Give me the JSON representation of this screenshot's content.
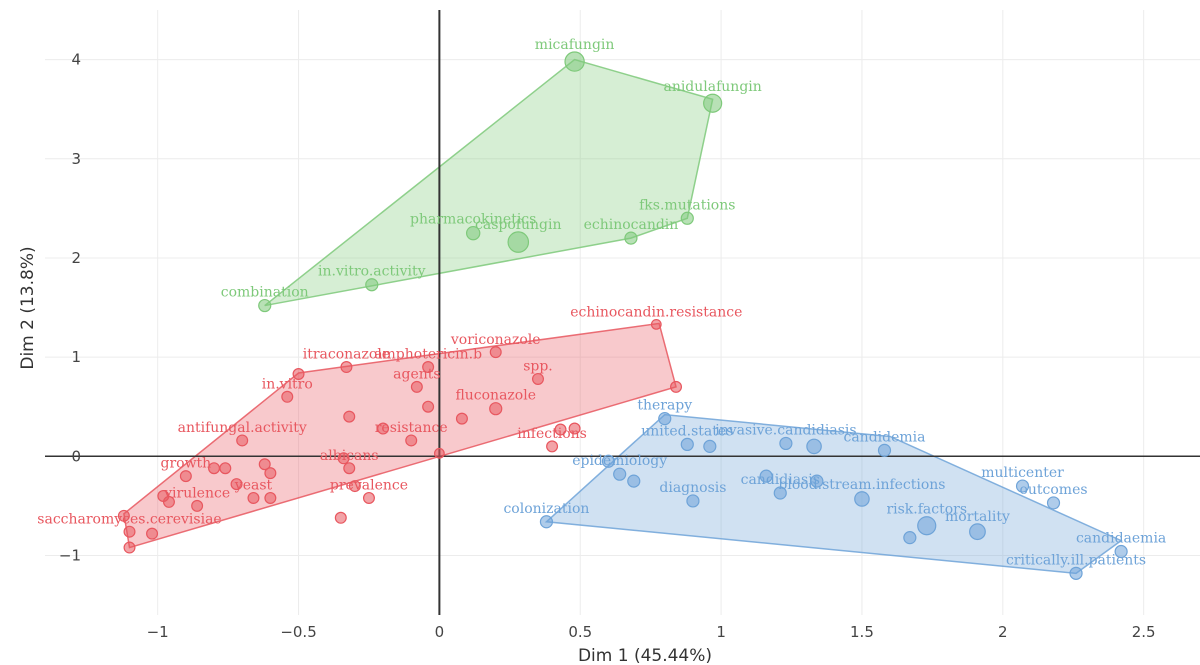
{
  "chart_data": {
    "type": "scatter",
    "title": "",
    "xlabel": "Dim 1 (45.44%)",
    "ylabel": "Dim 2 (13.8%)",
    "xlim": [
      -1.4,
      2.7
    ],
    "ylim": [
      -1.6,
      4.5
    ],
    "x_ticks": [
      -1,
      -0.5,
      0,
      0.5,
      1,
      1.5,
      2,
      2.5
    ],
    "x_tick_labels": [
      "−1",
      "−0.5",
      "0",
      "0.5",
      "1",
      "1.5",
      "2",
      "2.5"
    ],
    "y_ticks": [
      -1,
      0,
      1,
      2,
      3,
      4
    ],
    "y_tick_labels": [
      "−1",
      "0",
      "1",
      "2",
      "3",
      "4"
    ],
    "grid": true,
    "colors": {
      "green": "#7ec97a",
      "red": "#e8575f",
      "blue": "#6ea3d8"
    },
    "clusters": [
      {
        "color": "green",
        "hull": [
          [
            -0.62,
            1.52
          ],
          [
            0.48,
            4.0
          ],
          [
            0.97,
            3.6
          ],
          [
            0.88,
            2.4
          ],
          [
            0.68,
            2.2
          ]
        ],
        "points": [
          {
            "label": "micafungin",
            "x": 0.48,
            "y": 3.98,
            "size": 1.6
          },
          {
            "label": "anidulafungin",
            "x": 0.97,
            "y": 3.56,
            "size": 1.5
          },
          {
            "label": "fks.mutations",
            "x": 0.88,
            "y": 2.4,
            "size": 1.0
          },
          {
            "label": "caspofungin",
            "x": 0.28,
            "y": 2.16,
            "size": 1.7
          },
          {
            "label": "pharmacokinetics",
            "x": 0.12,
            "y": 2.25,
            "size": 1.1
          },
          {
            "label": "echinocandin",
            "x": 0.68,
            "y": 2.2,
            "size": 1.0
          },
          {
            "label": "in.vitro.activity",
            "x": -0.24,
            "y": 1.73,
            "size": 1.0
          },
          {
            "label": "combination",
            "x": -0.62,
            "y": 1.52,
            "size": 1.0
          }
        ]
      },
      {
        "color": "red",
        "hull": [
          [
            -1.12,
            -0.58
          ],
          [
            -0.5,
            0.84
          ],
          [
            0.78,
            1.34
          ],
          [
            0.84,
            0.7
          ],
          [
            -1.1,
            -0.92
          ]
        ],
        "points": [
          {
            "label": "echinocandin.resistance",
            "x": 0.77,
            "y": 1.33,
            "size": 0.8
          },
          {
            "label": "voriconazole",
            "x": 0.2,
            "y": 1.05,
            "size": 0.9
          },
          {
            "label": "spp.",
            "x": 0.35,
            "y": 0.78,
            "size": 0.9
          },
          {
            "label": "amphotericin.b",
            "x": -0.04,
            "y": 0.9,
            "size": 0.9
          },
          {
            "label": "agents",
            "x": -0.08,
            "y": 0.7,
            "size": 0.9
          },
          {
            "label": "itraconazole",
            "x": -0.33,
            "y": 0.9,
            "size": 0.9
          },
          {
            "label": "fluconazole",
            "x": 0.2,
            "y": 0.48,
            "size": 1.0
          },
          {
            "label": "in.vitro",
            "x": -0.54,
            "y": 0.6,
            "size": 0.9
          },
          {
            "label": "antifungal.activity",
            "x": -0.7,
            "y": 0.16,
            "size": 0.9
          },
          {
            "label": "resistance",
            "x": -0.1,
            "y": 0.16,
            "size": 0.9
          },
          {
            "label": "albicans",
            "x": -0.32,
            "y": -0.12,
            "size": 0.9
          },
          {
            "label": "infections",
            "x": 0.4,
            "y": 0.1,
            "size": 0.9
          },
          {
            "label": "growth",
            "x": -0.9,
            "y": -0.2,
            "size": 0.9
          },
          {
            "label": "yeast",
            "x": -0.66,
            "y": -0.42,
            "size": 0.9
          },
          {
            "label": "prevalence",
            "x": -0.25,
            "y": -0.42,
            "size": 0.9
          },
          {
            "label": "virulence",
            "x": -0.86,
            "y": -0.5,
            "size": 0.9
          },
          {
            "label": "saccharomyces.cerevisiae",
            "x": -1.1,
            "y": -0.76,
            "size": 0.9
          },
          {
            "label": "",
            "x": 0.84,
            "y": 0.7,
            "size": 0.9
          },
          {
            "label": "",
            "x": 0.0,
            "y": 0.03,
            "size": 0.8
          },
          {
            "label": "",
            "x": 0.08,
            "y": 0.38,
            "size": 0.9
          },
          {
            "label": "",
            "x": -0.04,
            "y": 0.5,
            "size": 0.9
          },
          {
            "label": "",
            "x": 0.48,
            "y": 0.28,
            "size": 0.9
          },
          {
            "label": "",
            "x": 0.43,
            "y": 0.27,
            "size": 0.9
          },
          {
            "label": "",
            "x": -0.2,
            "y": 0.28,
            "size": 0.9
          },
          {
            "label": "",
            "x": -0.32,
            "y": 0.4,
            "size": 0.9
          },
          {
            "label": "",
            "x": -0.62,
            "y": -0.08,
            "size": 0.9
          },
          {
            "label": "",
            "x": -0.6,
            "y": -0.17,
            "size": 0.9
          },
          {
            "label": "",
            "x": -0.76,
            "y": -0.12,
            "size": 0.9
          },
          {
            "label": "",
            "x": -0.8,
            "y": -0.12,
            "size": 0.9
          },
          {
            "label": "",
            "x": -0.98,
            "y": -0.4,
            "size": 0.9
          },
          {
            "label": "",
            "x": -0.96,
            "y": -0.46,
            "size": 0.9
          },
          {
            "label": "",
            "x": -1.02,
            "y": -0.78,
            "size": 0.9
          },
          {
            "label": "",
            "x": -1.12,
            "y": -0.6,
            "size": 0.9
          },
          {
            "label": "",
            "x": -1.1,
            "y": -0.92,
            "size": 0.9
          },
          {
            "label": "",
            "x": -0.35,
            "y": -0.62,
            "size": 0.9
          },
          {
            "label": "",
            "x": -0.34,
            "y": -0.02,
            "size": 0.9
          },
          {
            "label": "",
            "x": -0.5,
            "y": 0.83,
            "size": 0.9
          },
          {
            "label": "",
            "x": -0.6,
            "y": -0.42,
            "size": 0.9
          },
          {
            "label": "",
            "x": -0.3,
            "y": -0.3,
            "size": 0.9
          },
          {
            "label": "",
            "x": -0.72,
            "y": -0.28,
            "size": 0.9
          }
        ]
      },
      {
        "color": "blue",
        "hull": [
          [
            0.38,
            -0.66
          ],
          [
            0.8,
            0.42
          ],
          [
            1.6,
            0.2
          ],
          [
            2.42,
            -0.85
          ],
          [
            2.26,
            -1.18
          ]
        ],
        "points": [
          {
            "label": "therapy",
            "x": 0.8,
            "y": 0.38,
            "size": 1.0
          },
          {
            "label": "united.states",
            "x": 0.88,
            "y": 0.12,
            "size": 1.0
          },
          {
            "label": "invasive.candidiasis",
            "x": 1.23,
            "y": 0.13,
            "size": 1.0
          },
          {
            "label": "candidemia",
            "x": 1.58,
            "y": 0.06,
            "size": 1.0
          },
          {
            "label": "epidemiology",
            "x": 0.64,
            "y": -0.18,
            "size": 1.0
          },
          {
            "label": "diagnosis",
            "x": 0.9,
            "y": -0.45,
            "size": 1.0
          },
          {
            "label": "candidiasis",
            "x": 1.21,
            "y": -0.37,
            "size": 1.0
          },
          {
            "label": "blood.stream.infections",
            "x": 1.5,
            "y": -0.43,
            "size": 1.2
          },
          {
            "label": "multicenter",
            "x": 2.07,
            "y": -0.3,
            "size": 1.0
          },
          {
            "label": "outcomes",
            "x": 2.18,
            "y": -0.47,
            "size": 1.0
          },
          {
            "label": "risk.factors",
            "x": 1.73,
            "y": -0.7,
            "size": 1.5
          },
          {
            "label": "mortality",
            "x": 1.91,
            "y": -0.76,
            "size": 1.3
          },
          {
            "label": "colonization",
            "x": 0.38,
            "y": -0.66,
            "size": 1.0
          },
          {
            "label": "candidaemia",
            "x": 2.42,
            "y": -0.96,
            "size": 1.0
          },
          {
            "label": "critically.ill.patients",
            "x": 2.26,
            "y": -1.18,
            "size": 1.0
          },
          {
            "label": "",
            "x": 0.6,
            "y": -0.05,
            "size": 1.0
          },
          {
            "label": "",
            "x": 0.96,
            "y": 0.1,
            "size": 1.0
          },
          {
            "label": "",
            "x": 1.33,
            "y": 0.1,
            "size": 1.2
          },
          {
            "label": "",
            "x": 1.16,
            "y": -0.2,
            "size": 1.0
          },
          {
            "label": "",
            "x": 1.34,
            "y": -0.25,
            "size": 1.0
          },
          {
            "label": "",
            "x": 1.67,
            "y": -0.82,
            "size": 1.0
          },
          {
            "label": "",
            "x": 0.69,
            "y": -0.25,
            "size": 1.0
          }
        ]
      }
    ]
  }
}
